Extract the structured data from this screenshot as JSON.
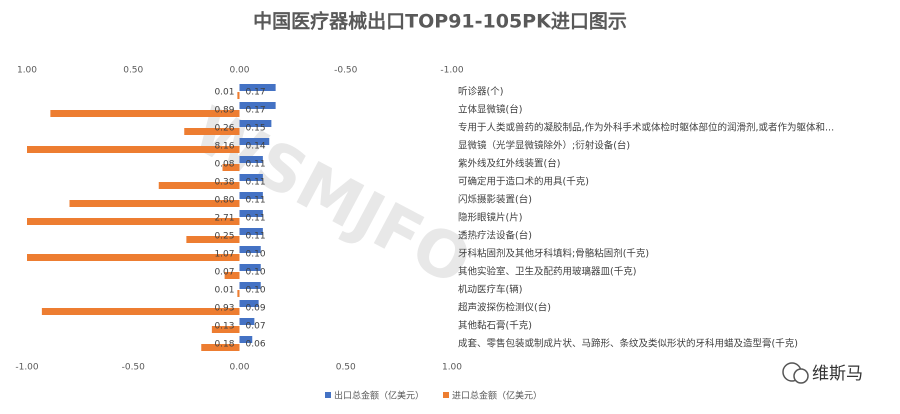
{
  "chart_data": {
    "type": "bar",
    "orientation": "horizontal",
    "title": "中国医疗器械出口TOP91-105PK进口图示",
    "categories": [
      "听诊器(个)",
      "立体显微镜(台)",
      "专用于人类或兽药的凝胶制品,作为外科手术或体检时躯体部位的润滑剂,或者作为躯体和...",
      "显微镜（光学显微镜除外）;衍射设备(台)",
      "紫外线及红外线装置(台)",
      "可确定用于造口术的用具(千克)",
      "闪烁摄影装置(台)",
      "隐形眼镜片(片)",
      "透热疗法设备(台)",
      "牙科粘固剂及其他牙科填料;骨骼粘固剂(千克)",
      "其他实验室、卫生及配药用玻璃器皿(千克)",
      "机动医疗车(辆)",
      "超声波探伤检测仪(台)",
      "其他黏石膏(千克)",
      "成套、零售包装或制成片状、马蹄形、条纹及类似形状的牙科用蜡及造型膏(千克)"
    ],
    "series": [
      {
        "name": "出口总金额（亿美元）",
        "color": "#4472c4",
        "values": [
          0.17,
          0.17,
          0.15,
          0.14,
          0.11,
          0.11,
          0.11,
          0.11,
          0.11,
          0.1,
          0.1,
          0.1,
          0.09,
          0.07,
          0.06
        ],
        "value_labels": [
          "0.17",
          "0.17",
          "0.15",
          "0.14",
          "0.11",
          "0.11",
          "0.11",
          "0.11",
          "0.11",
          "0.10",
          "0.10",
          "0.10",
          "0.09",
          "0.07",
          "0.06"
        ]
      },
      {
        "name": "进口总金额（亿美元）",
        "color": "#ed7d31",
        "axis": "x2",
        "values": [
          0.01,
          0.89,
          0.26,
          8.16,
          0.08,
          0.38,
          0.8,
          2.71,
          0.25,
          1.07,
          0.07,
          0.01,
          0.93,
          0.13,
          0.18
        ],
        "value_labels": [
          "0.01",
          "0.89",
          "0.26",
          "8.16",
          "0.08",
          "0.38",
          "0.80",
          "2.71",
          "0.25",
          "1.07",
          "0.07",
          "0.01",
          "0.93",
          "0.13",
          "0.18"
        ]
      }
    ],
    "xlim": [
      -1,
      1
    ],
    "xticks": [
      {
        "value": -1,
        "label": "-1.00"
      },
      {
        "value": -0.5,
        "label": "-0.50"
      },
      {
        "value": 0,
        "label": "0.00"
      },
      {
        "value": 0.5,
        "label": "0.50"
      },
      {
        "value": 1,
        "label": "1.00"
      }
    ],
    "x2lim": [
      1,
      -1
    ],
    "x2ticks": [
      {
        "value": 1,
        "label": "1.00"
      },
      {
        "value": 0.5,
        "label": "0.50"
      },
      {
        "value": 0,
        "label": "0.00"
      },
      {
        "value": -0.5,
        "label": "-0.50"
      },
      {
        "value": -1,
        "label": "-1.00"
      }
    ],
    "watermark": "WSMJFO",
    "logo": "维斯马"
  }
}
